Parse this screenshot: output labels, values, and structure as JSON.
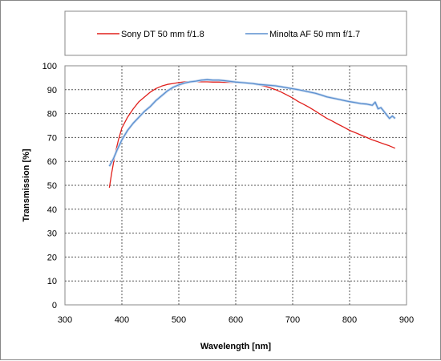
{
  "chart_data": {
    "type": "line",
    "title": "",
    "xlabel": "Wavelength [nm]",
    "ylabel": "Transmission [%]",
    "xlim": [
      300,
      900
    ],
    "ylim": [
      0,
      100
    ],
    "x_ticks": [
      300,
      400,
      500,
      600,
      700,
      800,
      900
    ],
    "y_ticks": [
      0,
      10,
      20,
      30,
      40,
      50,
      60,
      70,
      80,
      90,
      100
    ],
    "grid": true,
    "legend_position": "top",
    "series": [
      {
        "name": "Sony DT 50 mm  f/1.8",
        "color": "#e0201c",
        "x": [
          378,
          382,
          388,
          394,
          400,
          410,
          420,
          430,
          440,
          450,
          460,
          470,
          480,
          490,
          500,
          510,
          520,
          530,
          540,
          550,
          560,
          570,
          580,
          590,
          600,
          610,
          620,
          630,
          640,
          650,
          660,
          670,
          680,
          690,
          700,
          710,
          720,
          730,
          740,
          750,
          760,
          770,
          780,
          790,
          800,
          810,
          820,
          830,
          840,
          850,
          860,
          870,
          880
        ],
        "values": [
          49,
          55,
          63,
          69,
          74,
          78.5,
          82,
          85,
          87,
          89,
          90.5,
          91.5,
          92.2,
          92.6,
          93,
          93.3,
          93.4,
          93.4,
          93.3,
          93.3,
          93.2,
          93.2,
          93.1,
          93.1,
          93,
          92.9,
          92.7,
          92.4,
          92,
          91.5,
          90.8,
          90,
          89,
          87.8,
          86.5,
          85,
          83.8,
          82.5,
          81,
          79.5,
          78,
          76.8,
          75.5,
          74.3,
          73,
          72,
          71,
          70,
          69,
          68.2,
          67.3,
          66.5,
          65.5
        ]
      },
      {
        "name": "Minolta AF 50 mm f/1.7",
        "color": "#5b8fcf",
        "x": [
          378,
          385,
          392,
          400,
          410,
          420,
          430,
          440,
          450,
          460,
          470,
          480,
          490,
          500,
          510,
          520,
          530,
          540,
          550,
          560,
          570,
          580,
          590,
          600,
          610,
          620,
          630,
          640,
          650,
          660,
          670,
          680,
          690,
          700,
          710,
          720,
          730,
          740,
          750,
          760,
          770,
          780,
          790,
          800,
          810,
          820,
          830,
          840,
          845,
          850,
          855,
          860,
          865,
          870,
          875,
          880
        ],
        "values": [
          58,
          61,
          65,
          69,
          73,
          76,
          78.5,
          81,
          83,
          85.5,
          87.5,
          89.5,
          91,
          92,
          92.8,
          93.3,
          93.6,
          94,
          94.2,
          94,
          94,
          93.8,
          93.5,
          93.2,
          93,
          92.8,
          92.6,
          92.2,
          92,
          91.8,
          91.6,
          91.2,
          90.8,
          90.4,
          90,
          89.5,
          89,
          88.5,
          87.8,
          87,
          86.5,
          86,
          85.5,
          85,
          84.6,
          84.2,
          84,
          83.5,
          84.8,
          82,
          82.5,
          81,
          79.5,
          78,
          79,
          78
        ]
      }
    ]
  }
}
